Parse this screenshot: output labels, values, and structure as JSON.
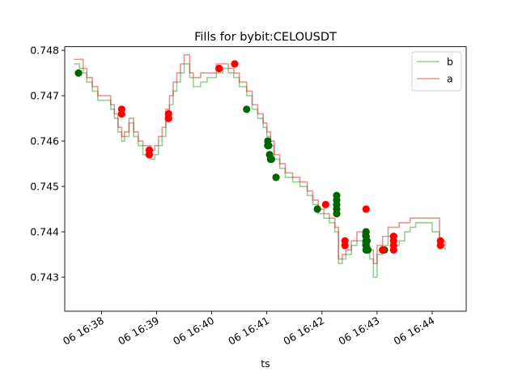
{
  "chart_data": {
    "type": "line",
    "title": "Fills for bybit:CELOUSDT",
    "xlabel": "ts",
    "ylabel": "",
    "x_tick_labels": [
      "06 16:38",
      "06 16:39",
      "06 16:40",
      "06 16:41",
      "06 16:42",
      "06 16:43",
      "06 16:44"
    ],
    "xlim": [
      "16:37:20",
      "16:44:37"
    ],
    "ylim": [
      0.74225,
      0.74808
    ],
    "y_ticks": [
      0.743,
      0.744,
      0.745,
      0.746,
      0.747,
      0.748
    ],
    "y_tick_labels": [
      "0.743",
      "0.744",
      "0.745",
      "0.746",
      "0.747",
      "0.748"
    ],
    "grid": false,
    "legend_position": "top-right",
    "series": [
      {
        "name": "b",
        "color": "#2ca02c",
        "style": "step-line",
        "x": [
          "16:37:30",
          "16:37:36",
          "16:37:40",
          "16:37:44",
          "16:37:50",
          "16:37:56",
          "16:38:05",
          "16:38:10",
          "16:38:14",
          "16:38:18",
          "16:38:22",
          "16:38:25",
          "16:38:30",
          "16:38:35",
          "16:38:40",
          "16:38:45",
          "16:38:50",
          "16:38:54",
          "16:38:58",
          "16:39:02",
          "16:39:06",
          "16:39:10",
          "16:39:14",
          "16:39:18",
          "16:39:22",
          "16:39:26",
          "16:39:30",
          "16:39:36",
          "16:39:40",
          "16:39:48",
          "16:39:55",
          "16:40:05",
          "16:40:12",
          "16:40:18",
          "16:40:24",
          "16:40:30",
          "16:40:38",
          "16:40:44",
          "16:40:50",
          "16:40:56",
          "16:41:00",
          "16:41:04",
          "16:41:08",
          "16:41:14",
          "16:41:20",
          "16:41:28",
          "16:41:36",
          "16:41:44",
          "16:41:50",
          "16:41:56",
          "16:42:02",
          "16:42:08",
          "16:42:14",
          "16:42:18",
          "16:42:22",
          "16:42:26",
          "16:42:32",
          "16:42:38",
          "16:42:44",
          "16:42:48",
          "16:42:52",
          "16:42:56",
          "16:43:00",
          "16:43:06",
          "16:43:12",
          "16:43:18",
          "16:43:24",
          "16:43:30",
          "16:43:36",
          "16:43:42",
          "16:43:50",
          "16:44:00",
          "16:44:08",
          "16:44:14"
        ],
        "y": [
          0.7477,
          0.7476,
          0.7475,
          0.7473,
          0.7471,
          0.7469,
          0.7469,
          0.7467,
          0.7465,
          0.7462,
          0.746,
          0.7461,
          0.7464,
          0.7461,
          0.7459,
          0.7457,
          0.7457,
          0.7456,
          0.7457,
          0.7459,
          0.7461,
          0.7465,
          0.7468,
          0.7471,
          0.7473,
          0.7475,
          0.7477,
          0.7474,
          0.7472,
          0.7473,
          0.7474,
          0.7475,
          0.7476,
          0.7475,
          0.7474,
          0.7472,
          0.747,
          0.7467,
          0.7465,
          0.7463,
          0.7461,
          0.7459,
          0.7456,
          0.7454,
          0.7452,
          0.7451,
          0.745,
          0.7448,
          0.7446,
          0.7444,
          0.7443,
          0.7442,
          0.744,
          0.7433,
          0.7434,
          0.7435,
          0.7437,
          0.7438,
          0.7437,
          0.7436,
          0.7434,
          0.743,
          0.7435,
          0.7437,
          0.7439,
          0.7437,
          0.7438,
          0.744,
          0.7441,
          0.7442,
          0.7442,
          0.744,
          0.7437,
          0.7436
        ]
      },
      {
        "name": "a",
        "color": "#d62728",
        "style": "step-line",
        "x": [
          "16:37:30",
          "16:37:36",
          "16:37:40",
          "16:37:44",
          "16:37:50",
          "16:37:56",
          "16:38:05",
          "16:38:10",
          "16:38:14",
          "16:38:18",
          "16:38:22",
          "16:38:25",
          "16:38:30",
          "16:38:35",
          "16:38:40",
          "16:38:45",
          "16:38:50",
          "16:38:54",
          "16:38:58",
          "16:39:02",
          "16:39:06",
          "16:39:10",
          "16:39:14",
          "16:39:18",
          "16:39:22",
          "16:39:26",
          "16:39:30",
          "16:39:36",
          "16:39:40",
          "16:39:48",
          "16:39:55",
          "16:40:05",
          "16:40:12",
          "16:40:18",
          "16:40:24",
          "16:40:30",
          "16:40:38",
          "16:40:44",
          "16:40:50",
          "16:40:56",
          "16:41:00",
          "16:41:04",
          "16:41:08",
          "16:41:14",
          "16:41:20",
          "16:41:28",
          "16:41:36",
          "16:41:44",
          "16:41:50",
          "16:41:56",
          "16:42:02",
          "16:42:08",
          "16:42:14",
          "16:42:18",
          "16:42:22",
          "16:42:26",
          "16:42:32",
          "16:42:38",
          "16:42:44",
          "16:42:48",
          "16:42:52",
          "16:42:56",
          "16:43:00",
          "16:43:06",
          "16:43:12",
          "16:43:18",
          "16:43:24",
          "16:43:30",
          "16:43:36",
          "16:43:42",
          "16:43:50",
          "16:44:00",
          "16:44:08",
          "16:44:14"
        ],
        "y": [
          0.7478,
          0.7478,
          0.7476,
          0.7474,
          0.7472,
          0.747,
          0.747,
          0.7468,
          0.7466,
          0.7463,
          0.7461,
          0.7462,
          0.7465,
          0.7462,
          0.746,
          0.7459,
          0.7459,
          0.7458,
          0.7459,
          0.7461,
          0.7463,
          0.7467,
          0.747,
          0.7473,
          0.7475,
          0.7477,
          0.7479,
          0.7475,
          0.7474,
          0.7475,
          0.7475,
          0.7477,
          0.7477,
          0.7476,
          0.7475,
          0.7473,
          0.7471,
          0.7468,
          0.7466,
          0.7464,
          0.7462,
          0.746,
          0.7457,
          0.7455,
          0.7453,
          0.7452,
          0.7451,
          0.7449,
          0.7447,
          0.7445,
          0.7444,
          0.7443,
          0.7441,
          0.7434,
          0.7435,
          0.7436,
          0.7438,
          0.744,
          0.7439,
          0.7437,
          0.7436,
          0.7433,
          0.7437,
          0.7439,
          0.7441,
          0.7441,
          0.7442,
          0.7442,
          0.7443,
          0.7443,
          0.7443,
          0.7443,
          0.7438,
          0.7437
        ]
      }
    ],
    "fills": [
      {
        "side": "buy",
        "color": "#006400",
        "x": [
          "16:37:35",
          "16:40:38",
          "16:41:01",
          "16:41:01",
          "16:41:02",
          "16:41:03",
          "16:41:04",
          "16:41:05",
          "16:41:10",
          "16:41:55",
          "16:42:16",
          "16:42:16",
          "16:42:16",
          "16:42:16",
          "16:42:16",
          "16:42:48",
          "16:42:48",
          "16:42:48",
          "16:42:48",
          "16:42:48",
          "16:42:49",
          "16:42:50",
          "16:43:08"
        ],
        "y": [
          0.7475,
          0.7467,
          0.746,
          0.7459,
          0.7459,
          0.7457,
          0.7456,
          0.7456,
          0.7452,
          0.7445,
          0.7448,
          0.7447,
          0.7446,
          0.7445,
          0.7444,
          0.744,
          0.7439,
          0.7438,
          0.7437,
          0.7436,
          0.7438,
          0.7436,
          0.7436
        ]
      },
      {
        "side": "sell",
        "color": "#ff0000",
        "x": [
          "16:38:22",
          "16:38:22",
          "16:38:52",
          "16:38:52",
          "16:38:52",
          "16:39:13",
          "16:39:13",
          "16:39:13",
          "16:40:08",
          "16:40:08",
          "16:40:25",
          "16:42:04",
          "16:42:25",
          "16:42:25",
          "16:42:48",
          "16:43:06",
          "16:43:06",
          "16:43:18",
          "16:43:18",
          "16:43:18",
          "16:43:18",
          "16:44:09",
          "16:44:09"
        ],
        "y": [
          0.7467,
          0.7466,
          0.7458,
          0.7457,
          0.7457,
          0.7466,
          0.7465,
          0.7465,
          0.7476,
          0.7476,
          0.7477,
          0.7446,
          0.7438,
          0.7437,
          0.7445,
          0.7436,
          0.7436,
          0.7439,
          0.7438,
          0.7437,
          0.7436,
          0.7438,
          0.7437
        ]
      }
    ]
  }
}
